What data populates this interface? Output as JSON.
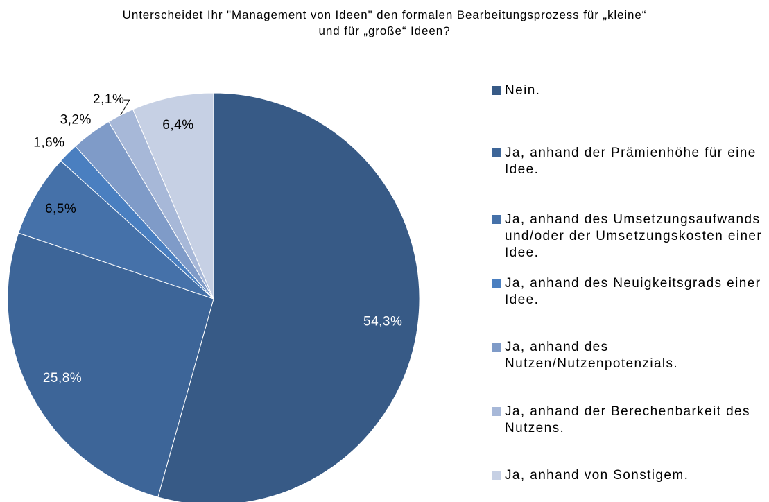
{
  "chart_data": {
    "type": "pie",
    "title": [
      "Unterscheidet Ihr \"Management von Ideen\" den formalen Bearbeitungsprozess für „kleine“",
      "und für „große“ Ideen?"
    ],
    "categories": [
      "Nein.",
      "Ja, anhand der Prämienhöhe für eine Idee.",
      "Ja, anhand des Umsetzungsaufwands und/oder der Umsetzungskosten einer Idee.",
      "Ja, anhand des Neuigkeitsgrads einer Idee.",
      "Ja, anhand des Nutzen/Nutzenpotenzials.",
      "Ja, anhand der Berechenbarkeit des Nutzens.",
      "Ja, anhand von Sonstigem."
    ],
    "values": [
      54.3,
      25.8,
      6.5,
      1.6,
      3.2,
      2.1,
      6.4
    ],
    "value_labels": [
      "54,3%",
      "25,8%",
      "6,5%",
      "1,6%",
      "3,2%",
      "2,1%",
      "6,4%"
    ],
    "colors": [
      "#375a86",
      "#3d6598",
      "#4571a9",
      "#4a7fc0",
      "#7f9bc8",
      "#a7b8d8",
      "#c6d0e4"
    ],
    "legend": "right"
  }
}
